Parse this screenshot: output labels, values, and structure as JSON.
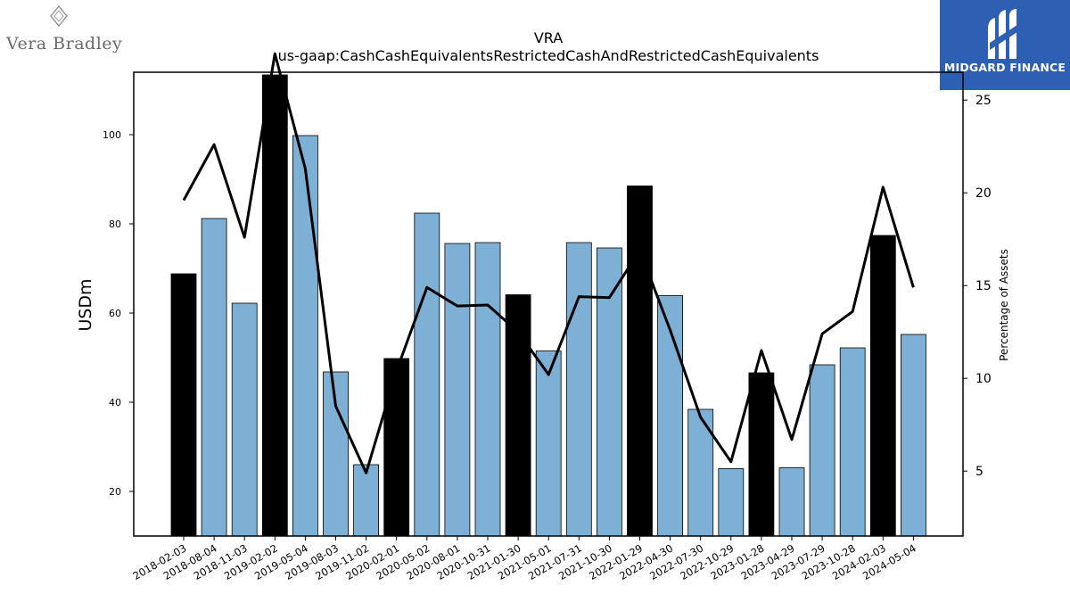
{
  "brands": {
    "left_name": "Vera Bradley",
    "right_name": "MIDGARD FINANCE"
  },
  "chart_data": {
    "type": "bar",
    "title": "VRA",
    "subtitle": "us-gaap:CashCashEquivalentsRestrictedCashAndRestrictedCashEquivalents",
    "ylabel": "USDm",
    "y2label": "Percentage of Assets",
    "ylim": [
      10,
      114
    ],
    "y2lim": [
      1.5,
      26.5
    ],
    "yticks": [
      20,
      40,
      60,
      80,
      100
    ],
    "y2ticks": [
      5,
      10,
      15,
      20,
      25
    ],
    "categories": [
      "2018-02-03",
      "2018-08-04",
      "2018-11-03",
      "2019-02-02",
      "2019-05-04",
      "2019-08-03",
      "2019-11-02",
      "2020-02-01",
      "2020-05-02",
      "2020-08-01",
      "2020-10-31",
      "2021-01-30",
      "2021-05-01",
      "2021-07-31",
      "2021-10-30",
      "2022-01-29",
      "2022-04-30",
      "2022-07-30",
      "2022-10-29",
      "2023-01-28",
      "2023-04-29",
      "2023-07-29",
      "2023-10-28",
      "2024-02-03",
      "2024-05-04"
    ],
    "series": [
      {
        "values": [
          68.8,
          81.2,
          62.2,
          113.4,
          99.8,
          46.8,
          26.0,
          49.8,
          82.4,
          75.6,
          75.8,
          64.1,
          51.5,
          75.8,
          74.6,
          88.5,
          63.9,
          38.4,
          25.1,
          46.6,
          25.3,
          48.4,
          52.2,
          77.4,
          55.2
        ],
        "highlight": [
          true,
          false,
          false,
          true,
          false,
          false,
          false,
          true,
          false,
          false,
          false,
          true,
          false,
          false,
          false,
          true,
          false,
          false,
          false,
          true,
          false,
          false,
          false,
          true,
          false
        ]
      },
      {
        "axis": "right",
        "type": "line",
        "values": [
          19.6,
          22.6,
          17.6,
          27.5,
          21.3,
          8.5,
          4.9,
          10.4,
          14.9,
          13.9,
          13.95,
          12.5,
          10.2,
          14.4,
          14.35,
          16.9,
          12.6,
          7.9,
          5.5,
          11.5,
          6.7,
          12.4,
          13.6,
          20.3,
          14.9
        ]
      }
    ],
    "colors": {
      "bar": "#7eb0d5",
      "bar_highlight": "#000000",
      "line": "#000000"
    },
    "grid": false
  }
}
